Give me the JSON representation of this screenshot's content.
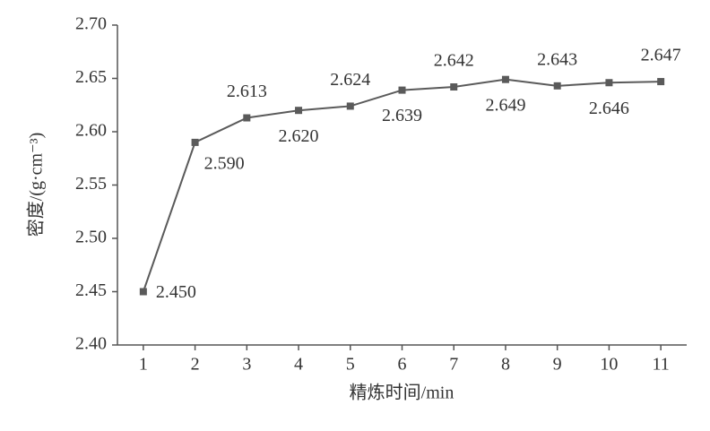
{
  "chart_data": {
    "type": "line",
    "x_label": "精炼时间/min",
    "y_label": "密度/(g·cm⁻³)",
    "x": [
      1,
      2,
      3,
      4,
      5,
      6,
      7,
      8,
      9,
      10,
      11
    ],
    "values": [
      2.45,
      2.59,
      2.613,
      2.62,
      2.624,
      2.639,
      2.642,
      2.649,
      2.643,
      2.646,
      2.647
    ],
    "value_labels": [
      "2.450",
      "2.590",
      "2.613",
      "2.620",
      "2.624",
      "2.639",
      "2.642",
      "2.649",
      "2.643",
      "2.646",
      "2.647"
    ],
    "color": "#5a5a5a",
    "xlim": [
      0.5,
      11.5
    ],
    "xticks": [
      1,
      2,
      3,
      4,
      5,
      6,
      7,
      8,
      9,
      10,
      11
    ],
    "ylim": [
      2.4,
      2.7
    ],
    "yticks": [
      {
        "value": 2.4,
        "label": "2.40"
      },
      2.45,
      {
        "value": 2.5,
        "label": "2.50"
      },
      2.55,
      {
        "value": 2.6,
        "label": "2.60"
      },
      2.65,
      {
        "value": 2.7,
        "label": "2.70"
      }
    ],
    "grid": false
  }
}
